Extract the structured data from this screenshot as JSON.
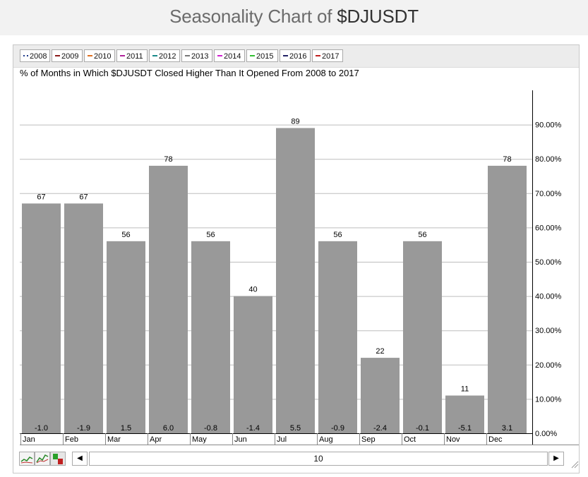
{
  "page": {
    "title_prefix": "Seasonality Chart of ",
    "title_symbol": "$DJUSDT"
  },
  "legend": [
    {
      "label": "2008",
      "color": "#1f3a8a",
      "dotted": true
    },
    {
      "label": "2009",
      "color": "#8b1a1a"
    },
    {
      "label": "2010",
      "color": "#e07020"
    },
    {
      "label": "2011",
      "color": "#b0209a"
    },
    {
      "label": "2012",
      "color": "#1a8a8a"
    },
    {
      "label": "2013",
      "color": "#777777"
    },
    {
      "label": "2014",
      "color": "#d020d0"
    },
    {
      "label": "2015",
      "color": "#30c030"
    },
    {
      "label": "2016",
      "color": "#222266"
    },
    {
      "label": "2017",
      "color": "#c02020"
    }
  ],
  "chart_data": {
    "type": "bar",
    "title": "% of Months in Which $DJUSDT Closed Higher Than It Opened From 2008 to 2017",
    "categories": [
      "Jan",
      "Feb",
      "Mar",
      "Apr",
      "May",
      "Jun",
      "Jul",
      "Aug",
      "Sep",
      "Oct",
      "Nov",
      "Dec"
    ],
    "values": [
      67,
      67,
      56,
      78,
      56,
      40,
      89,
      56,
      22,
      56,
      11,
      78
    ],
    "value_labels": [
      "67",
      "67",
      "56",
      "78",
      "56",
      "40",
      "89",
      "56",
      "22",
      "56",
      "11",
      "78"
    ],
    "avg_change_labels": [
      "-1.0",
      "-1.9",
      "1.5",
      "6.0",
      "-0.8",
      "-1.4",
      "5.5",
      "-0.9",
      "-2.4",
      "-0.1",
      "-5.1",
      "3.1"
    ],
    "y_ticks": [
      "0.00%",
      "10.00%",
      "20.00%",
      "30.00%",
      "40.00%",
      "50.00%",
      "60.00%",
      "70.00%",
      "80.00%",
      "90.00%"
    ],
    "ylim": [
      0,
      100
    ],
    "y_axis_side": "right",
    "grid": true,
    "bar_color": "#999999"
  },
  "scrollbar": {
    "value": "10"
  }
}
